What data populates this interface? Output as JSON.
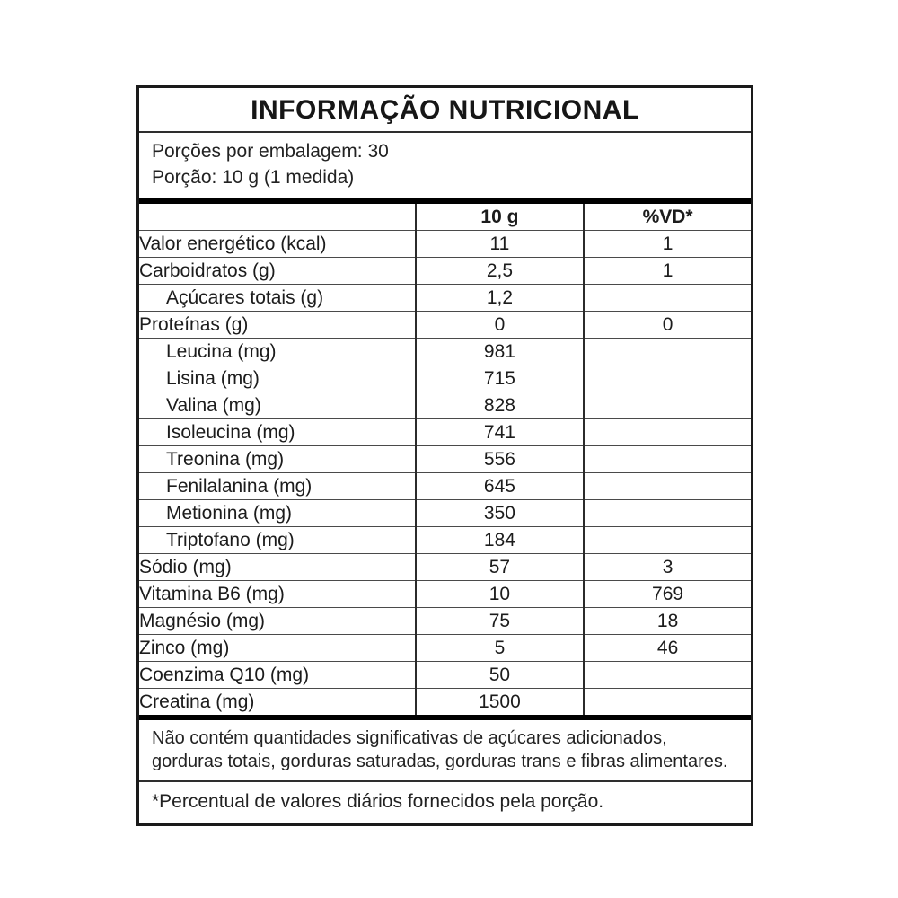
{
  "title": "INFORMAÇÃO NUTRICIONAL",
  "serving_info": {
    "servings_per_package": "Porções por embalagem: 30",
    "serving_size": "Porção: 10 g (1 medida)"
  },
  "table": {
    "columns": [
      "",
      "10 g",
      "%VD*"
    ],
    "rows": [
      {
        "label": "Valor energético (kcal)",
        "amount": "11",
        "vd": "1",
        "indent": false
      },
      {
        "label": "Carboidratos (g)",
        "amount": "2,5",
        "vd": "1",
        "indent": false
      },
      {
        "label": "Açúcares totais (g)",
        "amount": "1,2",
        "vd": "",
        "indent": true
      },
      {
        "label": "Proteínas (g)",
        "amount": "0",
        "vd": "0",
        "indent": false
      },
      {
        "label": "Leucina (mg)",
        "amount": "981",
        "vd": "",
        "indent": true
      },
      {
        "label": "Lisina (mg)",
        "amount": "715",
        "vd": "",
        "indent": true
      },
      {
        "label": "Valina (mg)",
        "amount": "828",
        "vd": "",
        "indent": true
      },
      {
        "label": "Isoleucina (mg)",
        "amount": "741",
        "vd": "",
        "indent": true
      },
      {
        "label": "Treonina (mg)",
        "amount": "556",
        "vd": "",
        "indent": true
      },
      {
        "label": "Fenilalanina (mg)",
        "amount": "645",
        "vd": "",
        "indent": true
      },
      {
        "label": "Metionina (mg)",
        "amount": "350",
        "vd": "",
        "indent": true
      },
      {
        "label": "Triptofano (mg)",
        "amount": "184",
        "vd": "",
        "indent": true
      },
      {
        "label": "Sódio (mg)",
        "amount": "57",
        "vd": "3",
        "indent": false
      },
      {
        "label": "Vitamina B6 (mg)",
        "amount": "10",
        "vd": "769",
        "indent": false
      },
      {
        "label": "Magnésio (mg)",
        "amount": "75",
        "vd": "18",
        "indent": false
      },
      {
        "label": "Zinco (mg)",
        "amount": "5",
        "vd": "46",
        "indent": false
      },
      {
        "label": "Coenzima Q10 (mg)",
        "amount": "50",
        "vd": "",
        "indent": false
      },
      {
        "label": "Creatina (mg)",
        "amount": "1500",
        "vd": "",
        "indent": false
      }
    ]
  },
  "footnotes": {
    "no_significant_amounts": "Não contém quantidades significativas de açúcares adicionados, gorduras totais, gorduras saturadas, gorduras trans e fibras alimentares.",
    "daily_values": "*Percentual de valores diários fornecidos pela porção."
  },
  "colors": {
    "text": "#1c1c1c",
    "border": "#1a1a1a",
    "thick_bar": "#000000",
    "row_line": "#4a4a4a",
    "background": "#ffffff"
  }
}
